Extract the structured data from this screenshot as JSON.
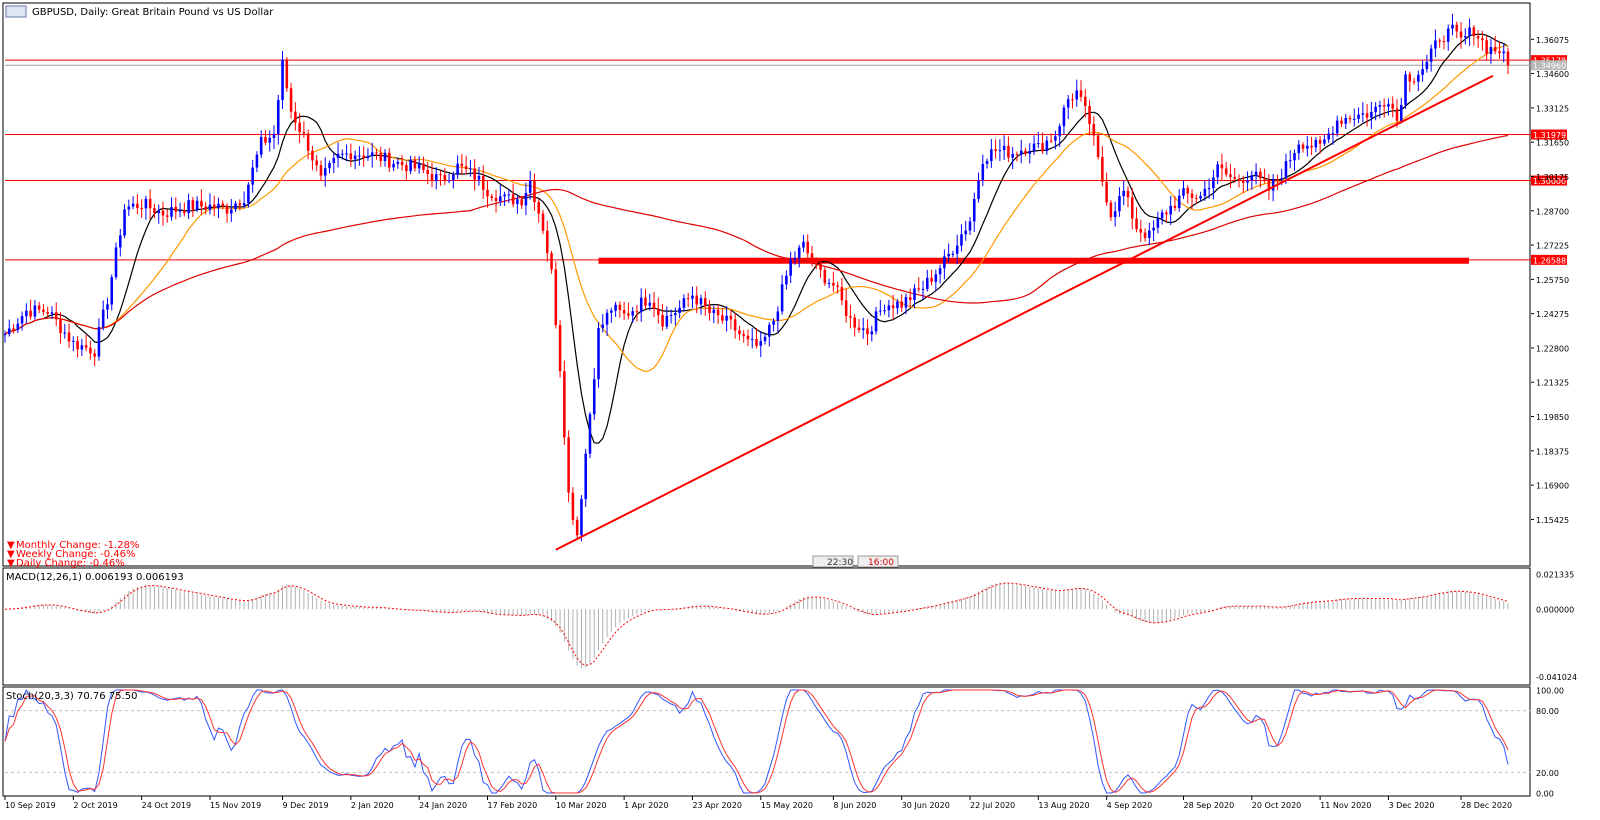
{
  "header": {
    "title": "GBPUSD, Daily:  Great Britain Pound vs US Dollar"
  },
  "info_box": {
    "monthly": "Monthly Change: -1.28%",
    "weekly": "Weekly Change: -0.46%",
    "daily": "Daily Change: -0.46%"
  },
  "time_labels": {
    "left": "22:30",
    "right": "16:00"
  },
  "colors": {
    "bull": "#0000ff",
    "bear": "#ff0000",
    "sma_fast": "#000000",
    "sma_mid": "#ff9900",
    "sma_slow": "#e00000",
    "level": "#ff0000",
    "stoch_main": "#3355ff",
    "stoch_signal": "#ff3333"
  },
  "chart_data": [
    {
      "type": "candlestick",
      "symbol": "GBPUSD",
      "timeframe": "Daily",
      "title": "GBPUSD, Daily:  Great Britain Pound vs US Dollar",
      "ylim": [
        1.1355,
        1.3755
      ],
      "y_ticks": [
        "1.36075",
        "1.34600",
        "1.33125",
        "1.31650",
        "1.30175",
        "1.28700",
        "1.27225",
        "1.25750",
        "1.24275",
        "1.22800",
        "1.21325",
        "1.19850",
        "1.18375",
        "1.16900",
        "1.15425"
      ],
      "x_ticks": [
        "10 Sep 2019",
        "2 Oct 2019",
        "24 Oct 2019",
        "15 Nov 2019",
        "9 Dec 2019",
        "2 Jan 2020",
        "24 Jan 2020",
        "17 Feb 2020",
        "10 Mar 2020",
        "1 Apr 2020",
        "23 Apr 2020",
        "15 May 2020",
        "8 Jun 2020",
        "30 Jun 2020",
        "22 Jul 2020",
        "13 Aug 2020",
        "4 Sep 2020",
        "28 Sep 2020",
        "20 Oct 2020",
        "11 Nov 2020",
        "3 Dec 2020",
        "28 Dec 2020"
      ],
      "price_levels": [
        {
          "label": "1.35178",
          "value": 1.35178
        },
        {
          "label": "1.31979",
          "value": 1.31979
        },
        {
          "label": "1.30000",
          "value": 1.3
        },
        {
          "label": "1.26588",
          "value": 1.26588
        }
      ],
      "current_price": "1.34960",
      "support_zone": {
        "value": 1.2655,
        "from": "1 Apr 2020",
        "to": "28 Dec 2020"
      },
      "trendline": {
        "from": [
          "10 Mar 2020",
          1.1412
        ],
        "to": [
          "28 Dec 2020",
          1.3425
        ]
      },
      "moving_averages": [
        "fast",
        "medium",
        "slow"
      ]
    },
    {
      "type": "histogram",
      "label": "MACD(12,26,1) 0.006193 0.006193",
      "ylim": [
        -0.0451,
        0.0233
      ],
      "y_ticks": [
        "0.021335",
        "0.000000",
        "-0.041024"
      ]
    },
    {
      "type": "line",
      "label": "Stoch(20,3,3) 70.76 75.50",
      "ylim": [
        0,
        100
      ],
      "y_ticks": [
        "100.00",
        "80.00",
        "20.00",
        "0.00"
      ],
      "levels": [
        80,
        20
      ]
    }
  ]
}
